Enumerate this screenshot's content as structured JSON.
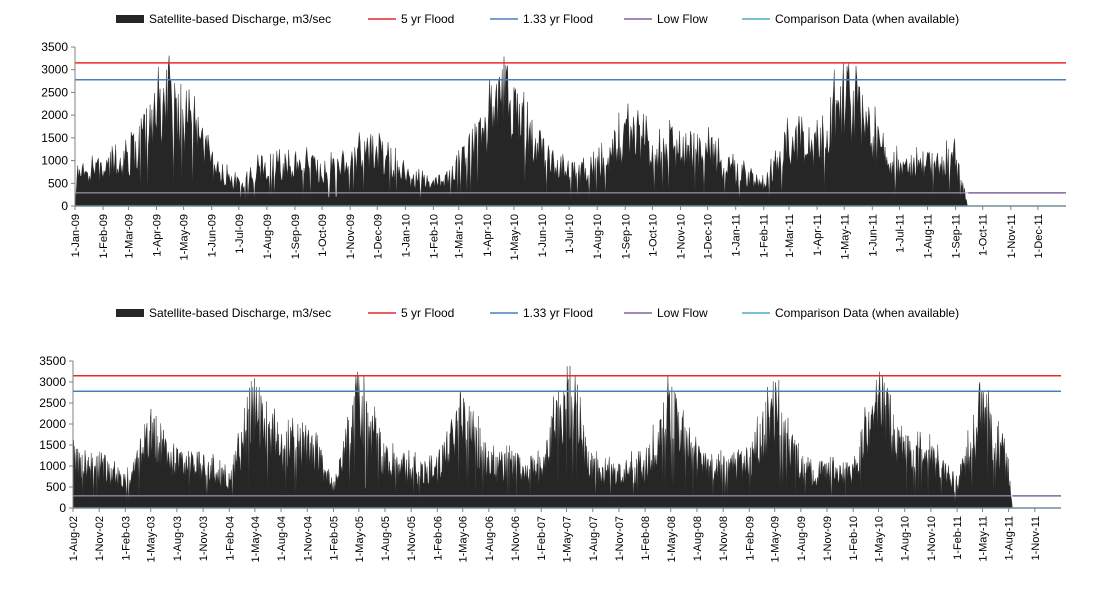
{
  "chart_data": [
    {
      "type": "area",
      "title": "",
      "xlabel": "",
      "ylabel": "",
      "ylim": [
        0,
        3500
      ],
      "yticks": [
        0,
        500,
        1000,
        1500,
        2000,
        2500,
        3000,
        3500
      ],
      "x_tick_labels": [
        "1-Jan-09",
        "1-Feb-09",
        "1-Mar-09",
        "1-Apr-09",
        "1-May-09",
        "1-Jun-09",
        "1-Jul-09",
        "1-Aug-09",
        "1-Sep-09",
        "1-Oct-09",
        "1-Nov-09",
        "1-Dec-09",
        "1-Jan-10",
        "1-Feb-10",
        "1-Mar-10",
        "1-Apr-10",
        "1-May-10",
        "1-Jun-10",
        "1-Jul-10",
        "1-Aug-10",
        "1-Sep-10",
        "1-Oct-10",
        "1-Nov-10",
        "1-Dec-10",
        "1-Jan-11",
        "1-Feb-11",
        "1-Mar-11",
        "1-Apr-11",
        "1-May-11",
        "1-Jun-11",
        "1-Jul-11",
        "1-Aug-11",
        "1-Sep-11",
        "1-Oct-11",
        "1-Nov-11",
        "1-Dec-11"
      ],
      "legend_position": "top",
      "grid": false,
      "series": [
        {
          "name": "Satellite-based Discharge, m3/sec",
          "kind": "area",
          "color": "#262626",
          "x": [
            "1-Jan-09",
            "1-Feb-09",
            "1-Mar-09",
            "1-Apr-09",
            "15-Apr-09",
            "1-May-09",
            "15-May-09",
            "1-Jun-09",
            "1-Jul-09",
            "1-Aug-09",
            "1-Sep-09",
            "1-Oct-09",
            "1-Nov-09",
            "1-Dec-09",
            "1-Jan-10",
            "1-Feb-10",
            "1-Mar-10",
            "1-Apr-10",
            "20-Apr-10",
            "1-May-10",
            "1-Jun-10",
            "1-Jul-10",
            "1-Aug-10",
            "1-Sep-10",
            "1-Oct-10",
            "1-Nov-10",
            "1-Dec-10",
            "1-Jan-11",
            "1-Feb-11",
            "1-Mar-11",
            "1-Apr-11",
            "1-May-11",
            "1-Jun-11",
            "1-Jul-11",
            "1-Aug-11",
            "1-Sep-11",
            "15-Sep-11"
          ],
          "values": [
            700,
            900,
            1100,
            2200,
            2700,
            2100,
            2000,
            900,
            500,
            1000,
            1000,
            900,
            1100,
            1400,
            700,
            500,
            1000,
            1900,
            2900,
            2500,
            1300,
            800,
            900,
            1700,
            1400,
            1400,
            1300,
            800,
            600,
            1500,
            1400,
            2700,
            1700,
            900,
            1000,
            1100,
            0
          ]
        },
        {
          "name": "5 yr Flood",
          "kind": "line",
          "color": "#e8292b",
          "value": 3150
        },
        {
          "name": "1.33 yr Flood",
          "kind": "line",
          "color": "#4a7ebb",
          "value": 2780
        },
        {
          "name": "Low Flow",
          "kind": "line",
          "color": "#8064a2",
          "value": 290
        },
        {
          "name": "Comparison Data (when available)",
          "kind": "line",
          "color": "#4bacc6",
          "value": 0
        }
      ]
    },
    {
      "type": "area",
      "title": "",
      "xlabel": "",
      "ylabel": "",
      "ylim": [
        0,
        3500
      ],
      "yticks": [
        0,
        500,
        1000,
        1500,
        2000,
        2500,
        3000,
        3500
      ],
      "x_tick_labels": [
        "1-Aug-02",
        "1-Nov-02",
        "1-Feb-03",
        "1-May-03",
        "1-Aug-03",
        "1-Nov-03",
        "1-Feb-04",
        "1-May-04",
        "1-Aug-04",
        "1-Nov-04",
        "1-Feb-05",
        "1-May-05",
        "1-Aug-05",
        "1-Nov-05",
        "1-Feb-06",
        "1-May-06",
        "1-Aug-06",
        "1-Nov-06",
        "1-Feb-07",
        "1-May-07",
        "1-Aug-07",
        "1-Nov-07",
        "1-Feb-08",
        "1-May-08",
        "1-Aug-08",
        "1-Nov-08",
        "1-Feb-09",
        "1-May-09",
        "1-Aug-09",
        "1-Nov-09",
        "1-Feb-10",
        "1-May-10",
        "1-Aug-10",
        "1-Nov-10",
        "1-Feb-11",
        "1-May-11",
        "1-Aug-11",
        "1-Nov-11"
      ],
      "legend_position": "top",
      "grid": false,
      "series": [
        {
          "name": "Satellite-based Discharge, m3/sec",
          "kind": "area",
          "color": "#262626",
          "x": [
            "1-Aug-02",
            "1-Nov-02",
            "1-Feb-03",
            "1-May-03",
            "1-Aug-03",
            "1-Nov-03",
            "1-Feb-04",
            "1-May-04",
            "1-Aug-04",
            "1-Nov-04",
            "1-Feb-05",
            "1-May-05",
            "1-Aug-05",
            "1-Nov-05",
            "1-Feb-06",
            "1-May-06",
            "1-Aug-06",
            "1-Nov-06",
            "1-Feb-07",
            "1-May-07",
            "1-Aug-07",
            "1-Nov-07",
            "1-Feb-08",
            "1-May-08",
            "1-Aug-08",
            "1-Nov-08",
            "1-Feb-09",
            "1-May-09",
            "1-Aug-09",
            "1-Nov-09",
            "1-Feb-10",
            "1-May-10",
            "1-Aug-10",
            "1-Nov-10",
            "1-Feb-11",
            "1-May-11",
            "1-Aug-11",
            "15-Aug-11"
          ],
          "values": [
            1200,
            1000,
            700,
            1900,
            1200,
            1100,
            700,
            2500,
            1500,
            1700,
            600,
            2700,
            1200,
            1000,
            900,
            2400,
            1100,
            1100,
            1000,
            3000,
            1000,
            1000,
            1000,
            2500,
            1200,
            1000,
            1200,
            2500,
            1000,
            900,
            900,
            2800,
            1400,
            1300,
            600,
            2400,
            1000,
            0
          ]
        },
        {
          "name": "5 yr Flood",
          "kind": "line",
          "color": "#e8292b",
          "value": 3150
        },
        {
          "name": "1.33 yr Flood",
          "kind": "line",
          "color": "#4a7ebb",
          "value": 2780
        },
        {
          "name": "Low Flow",
          "kind": "line",
          "color": "#8064a2",
          "value": 290
        },
        {
          "name": "Comparison Data (when available)",
          "kind": "line",
          "color": "#4bacc6",
          "value": 0
        }
      ]
    }
  ]
}
